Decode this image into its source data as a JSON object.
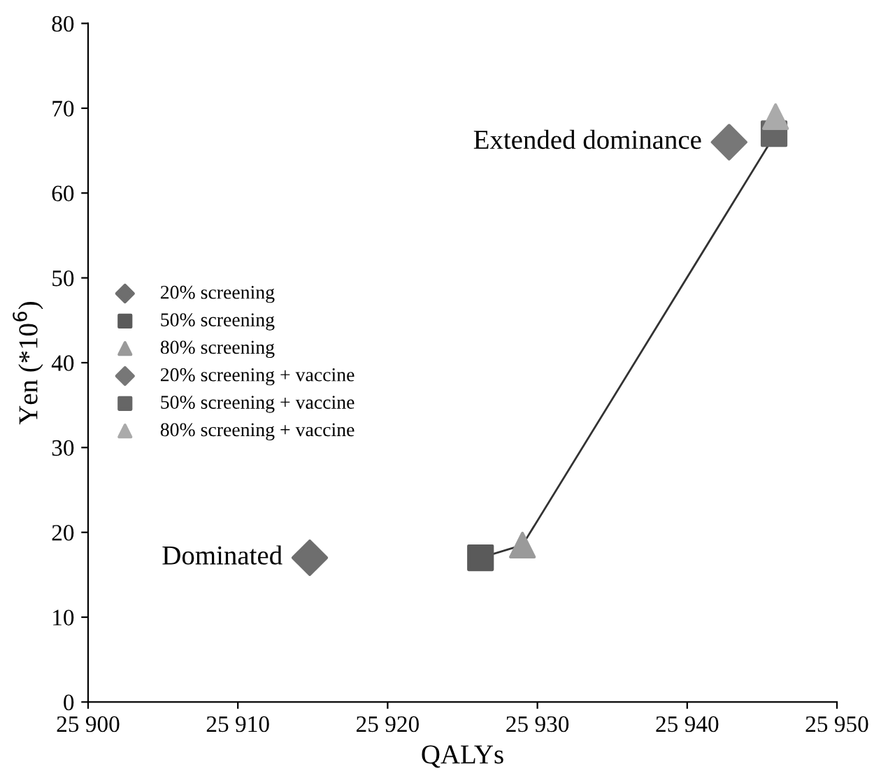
{
  "chart_data": {
    "type": "scatter",
    "xlabel": "QALYs",
    "ylabel": "Yen (*10$^{6}$)",
    "xlim": [
      25900,
      25950
    ],
    "xticks": [
      {
        "value": 25900,
        "label": "25 900"
      },
      {
        "value": 25910,
        "label": "25 910"
      },
      {
        "value": 25920,
        "label": "25 920"
      },
      {
        "value": 25930,
        "label": "25 930"
      },
      {
        "value": 25940,
        "label": "25 940"
      },
      {
        "value": 25950,
        "label": "25 950"
      }
    ],
    "ylim": [
      0,
      80
    ],
    "yticks": [
      0,
      10,
      20,
      30,
      40,
      50,
      60,
      70,
      80
    ],
    "grid": false,
    "legend": "center left",
    "series": [
      {
        "name": "20% screening",
        "color": "#6e6e6e",
        "marker": "diamond",
        "x": [
          25914.8
        ],
        "values": [
          17
        ]
      },
      {
        "name": "50% screening",
        "color": "#5a5a5a",
        "marker": "square",
        "x": [
          25926.2
        ],
        "values": [
          17
        ]
      },
      {
        "name": "80% screening",
        "color": "#9a9a9a",
        "marker": "triangle",
        "x": [
          25929
        ],
        "values": [
          18.5
        ]
      },
      {
        "name": "20% screening + vaccine",
        "color": "#777777",
        "marker": "diamond",
        "x": [
          25942.8
        ],
        "values": [
          66
        ]
      },
      {
        "name": "50% screening + vaccine",
        "color": "#666666",
        "marker": "square",
        "x": [
          25945.8
        ],
        "values": [
          67
        ]
      },
      {
        "name": "80% screening + vaccine",
        "color": "#aaaaaa",
        "marker": "triangle",
        "x": [
          25945.9
        ],
        "values": [
          69
        ]
      },
      {
        "type": "line",
        "color": "#333333",
        "marker": "none",
        "line_style": "solid",
        "x": [
          25926.2,
          25929,
          25945.9
        ],
        "values": [
          17,
          18.5,
          67
        ]
      }
    ],
    "annotations": [
      {
        "text": "Dominated",
        "x": 25914.8,
        "y": 17
      },
      {
        "text": "Extended dominance",
        "x": 25942.8,
        "y": 66
      }
    ]
  }
}
